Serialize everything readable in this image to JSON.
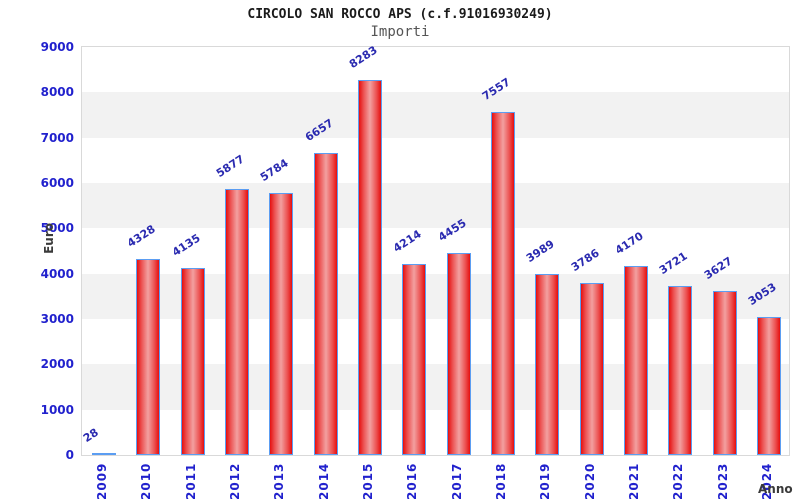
{
  "title": "CIRCOLO SAN ROCCO APS (c.f.91016930249)",
  "subtitle": "Importi",
  "chart_data": {
    "type": "bar",
    "title": "CIRCOLO SAN ROCCO APS (c.f.91016930249)",
    "subtitle": "Importi",
    "xlabel": "Anno",
    "ylabel": "Euro",
    "categories": [
      "2009",
      "2010",
      "2011",
      "2012",
      "2013",
      "2014",
      "2015",
      "2016",
      "2017",
      "2018",
      "2019",
      "2020",
      "2021",
      "2022",
      "2023",
      "2024"
    ],
    "values": [
      28,
      4328,
      4135,
      5877,
      5784,
      6657,
      8283,
      4214,
      4455,
      7557,
      3989,
      3786,
      4170,
      3721,
      3627,
      3053
    ],
    "ylim": [
      0,
      9000
    ],
    "ytick_step": 1000,
    "grid": "alternating horizontal bands",
    "legend_position": "none",
    "data_labels": "above bars, rotated"
  },
  "colors": {
    "bar_edge": "#5b9df2",
    "bar_fill_edge": "#e60f0f",
    "bar_fill_center": "#f2a0a0",
    "tick_label_blue": "#2121cd",
    "value_label_blue": "#2a2ab0",
    "band_gray": "#f2f2f2",
    "band_white": "#ffffff",
    "plot_border": "#d9d9d9",
    "title_color": "#1a1a1a",
    "subtitle_color": "#555555",
    "axis_title_color": "#3a3a3a"
  }
}
